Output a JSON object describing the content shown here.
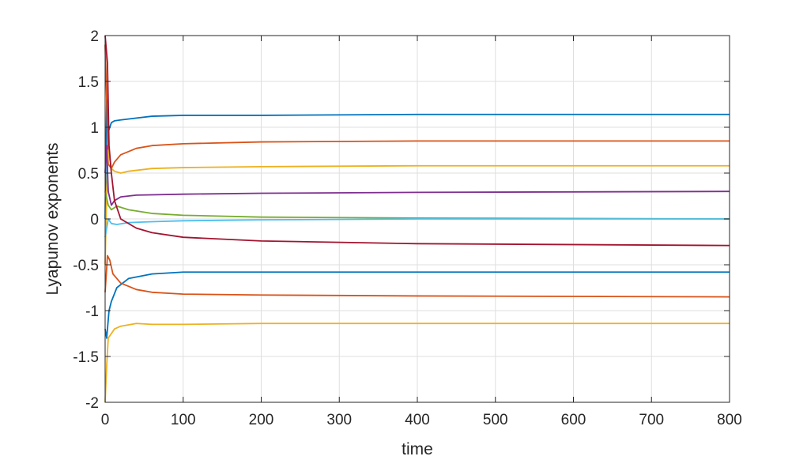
{
  "chart_data": {
    "type": "line",
    "xlabel": "time",
    "ylabel": "Lyapunov exponents",
    "xlim": [
      0,
      800
    ],
    "ylim": [
      -2,
      2
    ],
    "xticks": [
      "0",
      "100",
      "200",
      "300",
      "400",
      "500",
      "600",
      "700",
      "800"
    ],
    "yticks": [
      "2",
      "1.5",
      "1",
      "0.5",
      "0",
      "-0.5",
      "-1",
      "-1.5",
      "-2"
    ],
    "grid": true,
    "legend": "none",
    "series": [
      {
        "color": "#0072BD",
        "points": [
          [
            0,
            0
          ],
          [
            2,
            1.3
          ],
          [
            4,
            0.95
          ],
          [
            8,
            1.05
          ],
          [
            12,
            1.07
          ],
          [
            20,
            1.08
          ],
          [
            40,
            1.1
          ],
          [
            60,
            1.12
          ],
          [
            100,
            1.13
          ],
          [
            200,
            1.13
          ],
          [
            400,
            1.14
          ],
          [
            800,
            1.14
          ]
        ]
      },
      {
        "color": "#D95319",
        "points": [
          [
            0,
            1.9
          ],
          [
            2,
            1.3
          ],
          [
            4,
            0.6
          ],
          [
            8,
            0.55
          ],
          [
            12,
            0.62
          ],
          [
            20,
            0.7
          ],
          [
            40,
            0.77
          ],
          [
            60,
            0.8
          ],
          [
            100,
            0.82
          ],
          [
            200,
            0.84
          ],
          [
            400,
            0.85
          ],
          [
            800,
            0.85
          ]
        ]
      },
      {
        "color": "#EDB120",
        "points": [
          [
            0,
            -0.5
          ],
          [
            2,
            0.3
          ],
          [
            4,
            0.75
          ],
          [
            8,
            0.55
          ],
          [
            12,
            0.52
          ],
          [
            20,
            0.5
          ],
          [
            30,
            0.52
          ],
          [
            60,
            0.55
          ],
          [
            100,
            0.56
          ],
          [
            200,
            0.57
          ],
          [
            400,
            0.58
          ],
          [
            800,
            0.58
          ]
        ]
      },
      {
        "color": "#7E2F8E",
        "points": [
          [
            0,
            0.5
          ],
          [
            2,
            0.8
          ],
          [
            4,
            0.3
          ],
          [
            8,
            0.15
          ],
          [
            12,
            0.2
          ],
          [
            20,
            0.24
          ],
          [
            40,
            0.26
          ],
          [
            100,
            0.27
          ],
          [
            200,
            0.28
          ],
          [
            400,
            0.29
          ],
          [
            800,
            0.3
          ]
        ]
      },
      {
        "color": "#77AC30",
        "points": [
          [
            0,
            0.3
          ],
          [
            4,
            0.15
          ],
          [
            8,
            0.1
          ],
          [
            15,
            0.14
          ],
          [
            30,
            0.1
          ],
          [
            60,
            0.06
          ],
          [
            100,
            0.04
          ],
          [
            200,
            0.02
          ],
          [
            400,
            0.01
          ],
          [
            800,
            0.0
          ]
        ]
      },
      {
        "color": "#4DBEEE",
        "points": [
          [
            0,
            -0.2
          ],
          [
            4,
            0.0
          ],
          [
            8,
            -0.05
          ],
          [
            15,
            -0.06
          ],
          [
            30,
            -0.04
          ],
          [
            60,
            -0.03
          ],
          [
            100,
            -0.02
          ],
          [
            200,
            -0.01
          ],
          [
            400,
            0.0
          ],
          [
            800,
            0.0
          ]
        ]
      },
      {
        "color": "#A2142F",
        "points": [
          [
            0,
            2.0
          ],
          [
            3,
            1.7
          ],
          [
            5,
            0.8
          ],
          [
            8,
            0.5
          ],
          [
            12,
            0.2
          ],
          [
            20,
            0.0
          ],
          [
            40,
            -0.1
          ],
          [
            60,
            -0.15
          ],
          [
            100,
            -0.2
          ],
          [
            200,
            -0.24
          ],
          [
            400,
            -0.27
          ],
          [
            800,
            -0.29
          ]
        ]
      },
      {
        "color": "#0072BD",
        "points": [
          [
            0,
            -1.2
          ],
          [
            2,
            -1.3
          ],
          [
            5,
            -1.0
          ],
          [
            8,
            -0.9
          ],
          [
            15,
            -0.75
          ],
          [
            30,
            -0.65
          ],
          [
            60,
            -0.6
          ],
          [
            100,
            -0.58
          ],
          [
            200,
            -0.58
          ],
          [
            400,
            -0.58
          ],
          [
            800,
            -0.58
          ]
        ]
      },
      {
        "color": "#D95319",
        "points": [
          [
            0,
            -0.8
          ],
          [
            3,
            -0.4
          ],
          [
            6,
            -0.45
          ],
          [
            10,
            -0.6
          ],
          [
            20,
            -0.7
          ],
          [
            40,
            -0.77
          ],
          [
            60,
            -0.8
          ],
          [
            100,
            -0.82
          ],
          [
            200,
            -0.83
          ],
          [
            400,
            -0.84
          ],
          [
            800,
            -0.85
          ]
        ]
      },
      {
        "color": "#EDB120",
        "points": [
          [
            0,
            -2.0
          ],
          [
            2,
            -1.6
          ],
          [
            4,
            -1.3
          ],
          [
            8,
            -1.25
          ],
          [
            12,
            -1.2
          ],
          [
            20,
            -1.17
          ],
          [
            40,
            -1.14
          ],
          [
            60,
            -1.15
          ],
          [
            100,
            -1.15
          ],
          [
            200,
            -1.14
          ],
          [
            400,
            -1.14
          ],
          [
            800,
            -1.14
          ]
        ]
      }
    ]
  }
}
